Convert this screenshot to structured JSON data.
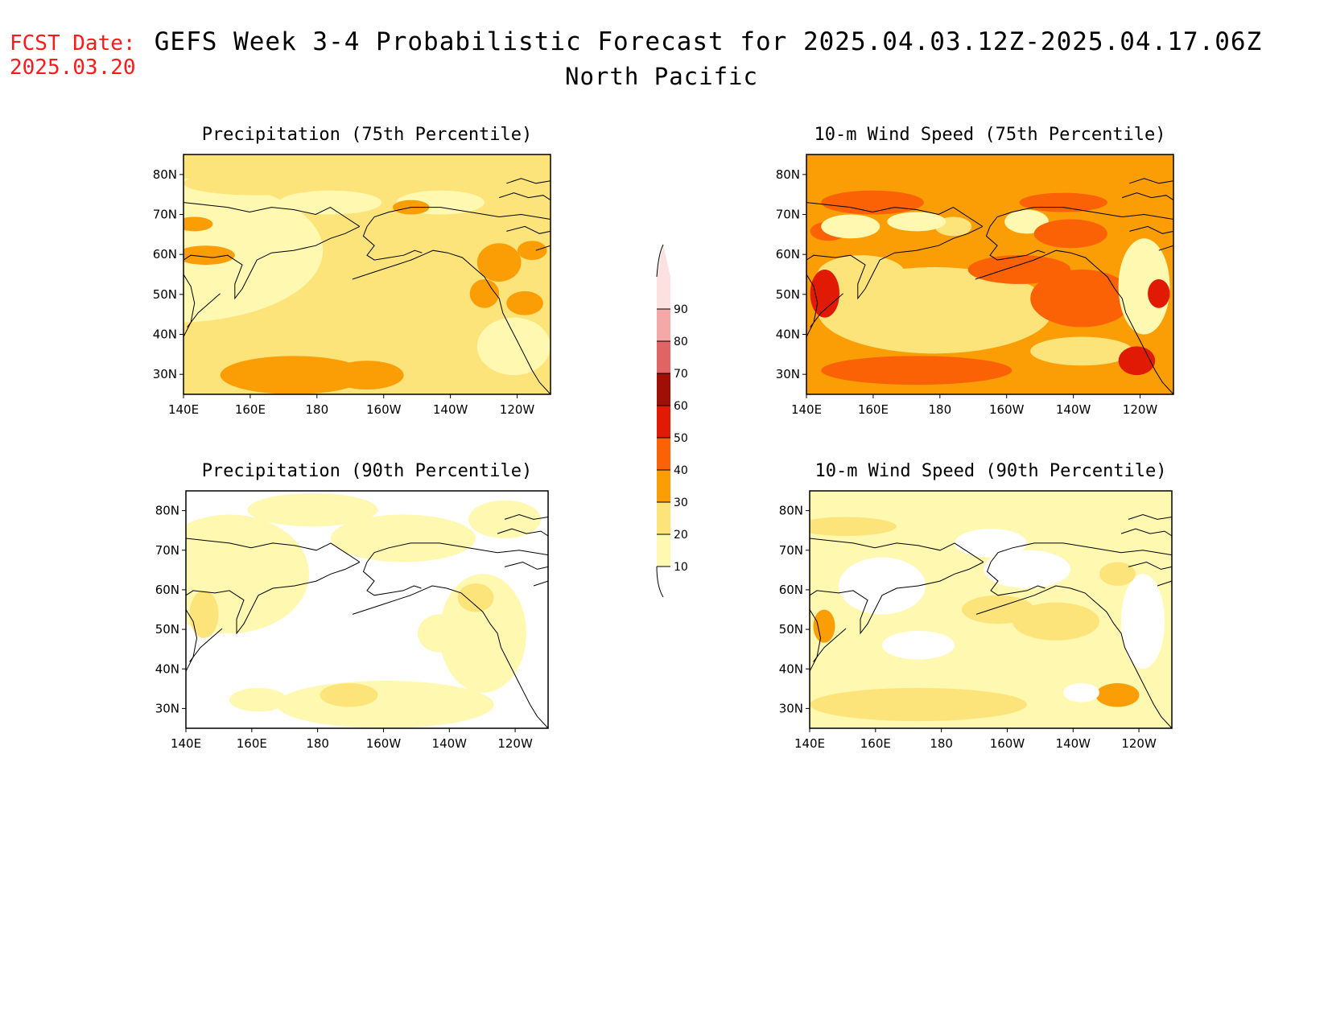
{
  "header": {
    "fcst_label": "FCST Date:",
    "fcst_date": "2025.03.20",
    "title": "GEFS Week 3-4 Probabilistic Forecast for 2025.04.03.12Z-2025.04.17.06Z",
    "region": "North Pacific"
  },
  "map_axes": {
    "x_ticks": [
      "140E",
      "160E",
      "180",
      "160W",
      "140W",
      "120W"
    ],
    "y_ticks": [
      "80N",
      "70N",
      "60N",
      "50N",
      "40N",
      "30N"
    ]
  },
  "colorbar": {
    "levels": [
      "10",
      "20",
      "30",
      "40",
      "50",
      "60",
      "70",
      "80",
      "90"
    ],
    "colors": [
      "#fff8b0",
      "#fde47a",
      "#fb9e05",
      "#fb6205",
      "#e01a05",
      "#a00f05",
      "#e06464",
      "#f5a8a8",
      "#fde0e0"
    ]
  },
  "panels": [
    {
      "id": "precip-75",
      "title": "Precipitation (75th Percentile)",
      "base": 1,
      "blobs": [
        [
          -0.02,
          0.4,
          0.4,
          0.3,
          0
        ],
        [
          0.55,
          0.62,
          0.16,
          0.14,
          1
        ],
        [
          0.3,
          0.92,
          0.2,
          0.08,
          2
        ],
        [
          0.5,
          0.92,
          0.1,
          0.06,
          2
        ],
        [
          0.06,
          0.42,
          0.08,
          0.04,
          2
        ],
        [
          0.03,
          0.29,
          0.05,
          0.03,
          2
        ],
        [
          0.86,
          0.45,
          0.06,
          0.08,
          2
        ],
        [
          0.82,
          0.58,
          0.04,
          0.06,
          2
        ],
        [
          0.95,
          0.4,
          0.04,
          0.04,
          2
        ],
        [
          0.9,
          0.8,
          0.1,
          0.12,
          0
        ],
        [
          0.7,
          0.2,
          0.12,
          0.05,
          0
        ],
        [
          0.4,
          0.2,
          0.14,
          0.05,
          0
        ],
        [
          0.2,
          0.12,
          0.2,
          0.05,
          1
        ],
        [
          0.62,
          0.22,
          0.05,
          0.03,
          2
        ],
        [
          0.93,
          0.62,
          0.05,
          0.05,
          2
        ]
      ]
    },
    {
      "id": "wind-75",
      "title": "10-m Wind Speed (75th Percentile)",
      "base": 2,
      "blobs": [
        [
          0.35,
          0.65,
          0.32,
          0.18,
          1
        ],
        [
          0.15,
          0.5,
          0.12,
          0.08,
          1
        ],
        [
          0.75,
          0.82,
          0.14,
          0.06,
          1
        ],
        [
          0.3,
          0.9,
          0.26,
          0.06,
          3
        ],
        [
          0.75,
          0.6,
          0.14,
          0.12,
          3
        ],
        [
          0.58,
          0.48,
          0.14,
          0.06,
          3
        ],
        [
          0.05,
          0.58,
          0.04,
          0.1,
          4
        ],
        [
          0.06,
          0.32,
          0.05,
          0.04,
          3
        ],
        [
          0.9,
          0.86,
          0.05,
          0.06,
          4
        ],
        [
          0.18,
          0.2,
          0.14,
          0.05,
          3
        ],
        [
          0.4,
          0.3,
          0.05,
          0.04,
          1
        ],
        [
          0.6,
          0.28,
          0.06,
          0.05,
          0
        ],
        [
          0.72,
          0.33,
          0.1,
          0.06,
          3
        ],
        [
          0.92,
          0.55,
          0.07,
          0.2,
          0
        ],
        [
          0.96,
          0.58,
          0.03,
          0.06,
          4
        ],
        [
          0.12,
          0.3,
          0.08,
          0.05,
          0
        ],
        [
          0.3,
          0.28,
          0.08,
          0.04,
          0
        ],
        [
          0.7,
          0.2,
          0.12,
          0.04,
          3
        ]
      ]
    },
    {
      "id": "precip-90",
      "title": "Precipitation (90th Percentile)",
      "base": -1,
      "blobs": [
        [
          0.12,
          0.35,
          0.22,
          0.25,
          0
        ],
        [
          0.55,
          0.9,
          0.3,
          0.1,
          0
        ],
        [
          0.82,
          0.6,
          0.12,
          0.25,
          0
        ],
        [
          0.6,
          0.2,
          0.2,
          0.1,
          0
        ],
        [
          0.35,
          0.08,
          0.18,
          0.07,
          0
        ],
        [
          0.88,
          0.12,
          0.1,
          0.08,
          0
        ],
        [
          0.05,
          0.52,
          0.04,
          0.1,
          1
        ],
        [
          0.2,
          0.88,
          0.08,
          0.05,
          0
        ],
        [
          0.45,
          0.86,
          0.08,
          0.05,
          1
        ],
        [
          0.8,
          0.45,
          0.05,
          0.06,
          1
        ],
        [
          0.7,
          0.6,
          0.06,
          0.08,
          0
        ]
      ]
    },
    {
      "id": "wind-90",
      "title": "10-m Wind Speed (90th Percentile)",
      "base": 0,
      "blobs": [
        [
          0.3,
          0.9,
          0.3,
          0.07,
          1
        ],
        [
          0.68,
          0.55,
          0.12,
          0.08,
          1
        ],
        [
          0.52,
          0.5,
          0.1,
          0.06,
          1
        ],
        [
          0.85,
          0.86,
          0.06,
          0.05,
          2
        ],
        [
          0.04,
          0.57,
          0.03,
          0.07,
          2
        ],
        [
          0.2,
          0.4,
          0.12,
          0.12,
          -1
        ],
        [
          0.3,
          0.65,
          0.1,
          0.06,
          -1
        ],
        [
          0.75,
          0.85,
          0.05,
          0.04,
          -1
        ],
        [
          0.6,
          0.33,
          0.12,
          0.08,
          -1
        ],
        [
          0.92,
          0.55,
          0.06,
          0.2,
          -1
        ],
        [
          0.1,
          0.15,
          0.14,
          0.04,
          1
        ],
        [
          0.85,
          0.35,
          0.05,
          0.05,
          1
        ],
        [
          0.5,
          0.22,
          0.1,
          0.06,
          -1
        ]
      ]
    }
  ]
}
